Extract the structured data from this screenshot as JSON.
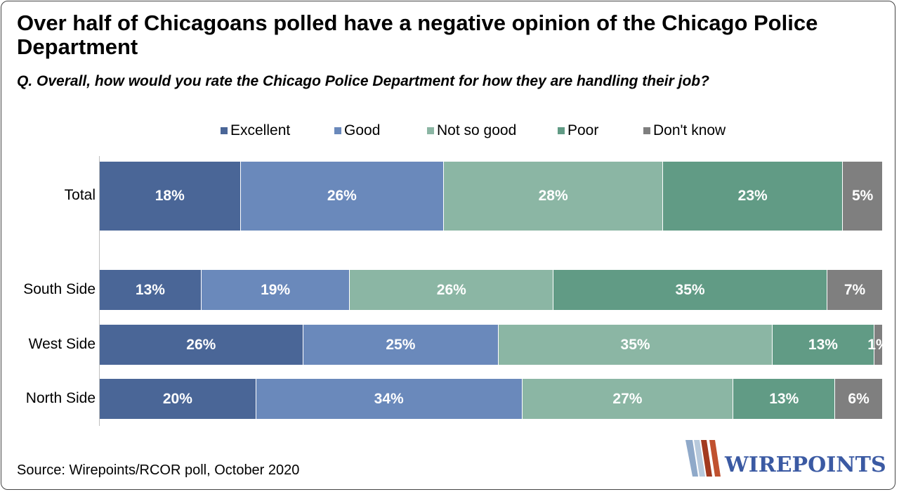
{
  "title": "Over half of Chicagoans polled have a negative opinion of the Chicago Police Department",
  "subtitle": "Q. Overall, how would you rate the Chicago Police Department for how they are handling their job?",
  "source": "Source: Wirepoints/RCOR poll, October 2020",
  "logo_text": "WIREPOINTS",
  "chart_data": {
    "type": "bar",
    "orientation": "horizontal",
    "stacked": true,
    "unit": "%",
    "categories": [
      "Total",
      "South Side",
      "West Side",
      "North Side"
    ],
    "series": [
      {
        "name": "Excellent",
        "color": "#4a6697",
        "values": [
          18,
          13,
          26,
          20
        ]
      },
      {
        "name": "Good",
        "color": "#6a89bb",
        "values": [
          26,
          19,
          25,
          34
        ]
      },
      {
        "name": "Not so good",
        "color": "#8bb6a4",
        "values": [
          28,
          26,
          35,
          27
        ]
      },
      {
        "name": "Poor",
        "color": "#619b85",
        "values": [
          23,
          35,
          13,
          13
        ]
      },
      {
        "name": "Don't know",
        "color": "#7f7f7f",
        "values": [
          5,
          7,
          1,
          6
        ]
      }
    ],
    "labels": [
      [
        "18%",
        "26%",
        "28%",
        "23%",
        "5%"
      ],
      [
        "13%",
        "19%",
        "26%",
        "35%",
        "7%"
      ],
      [
        "26%",
        "25%",
        "35%",
        "13%",
        "1%"
      ],
      [
        "20%",
        "34%",
        "27%",
        "13%",
        "6%"
      ]
    ],
    "xlim": [
      0,
      100
    ],
    "legend_position": "top",
    "grid": false
  }
}
